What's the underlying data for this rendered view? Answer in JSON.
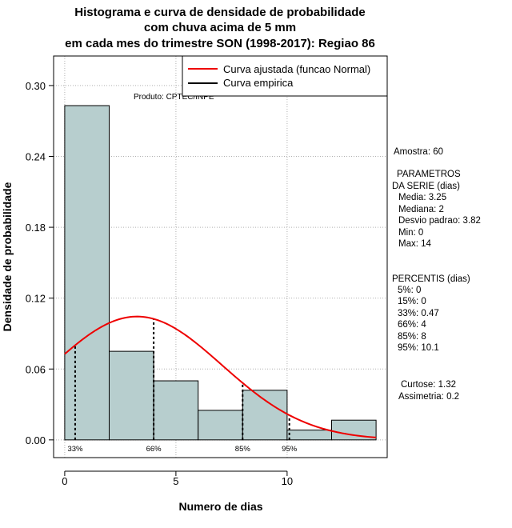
{
  "chart_data": {
    "type": "bar",
    "title_lines": [
      "Histograma e curva de densidade de probabilidade",
      "com chuva acima de 5 mm",
      "em cada mes do trimestre SON (1998-2017): Regiao 86"
    ],
    "xlabel": "Numero de dias",
    "ylabel": "Densidade de probabilidade",
    "xlim": [
      -0.5,
      14.5
    ],
    "ylim": [
      -0.015,
      0.325
    ],
    "xticks": [
      0,
      5,
      10
    ],
    "xtick_labels": [
      "0",
      "5",
      "10"
    ],
    "yticks": [
      0.0,
      0.06,
      0.12,
      0.18,
      0.24,
      0.3
    ],
    "ytick_labels": [
      "0.00",
      "0.06",
      "0.12",
      "0.18",
      "0.24",
      "0.30"
    ],
    "grid": true,
    "bins": [
      {
        "from": 0,
        "to": 2,
        "density": 0.283
      },
      {
        "from": 2,
        "to": 4,
        "density": 0.075
      },
      {
        "from": 4,
        "to": 6,
        "density": 0.05
      },
      {
        "from": 6,
        "to": 8,
        "density": 0.025
      },
      {
        "from": 8,
        "to": 10,
        "density": 0.042
      },
      {
        "from": 10,
        "to": 12,
        "density": 0.0083
      },
      {
        "from": 12,
        "to": 14,
        "density": 0.0167
      }
    ],
    "bar_color": "#b7cece",
    "fitted_curve": {
      "name": "Curva ajustada (funcao Normal)",
      "mean": 3.25,
      "sd": 3.82,
      "from": 0,
      "to": 14,
      "color": "#ee0000"
    },
    "empirical_curve": {
      "name": "Curva empirica",
      "color": "#000000"
    },
    "percentile_lines": [
      {
        "label": "33%",
        "x": 0.47
      },
      {
        "label": "66%",
        "x": 4
      },
      {
        "label": "85%",
        "x": 8
      },
      {
        "label": "95%",
        "x": 10.1
      }
    ],
    "legend_position": "top-right",
    "legend": [
      "Curva ajustada (funcao Normal)",
      "Curva empirica"
    ],
    "annotation": "Produto: CPTEC/INPE"
  },
  "side_panel": {
    "amostra": "Amostra: 60",
    "param_title_1": "PARAMETROS",
    "param_title_2": "DA SERIE (dias)",
    "params": [
      "Media: 3.25",
      "Mediana: 2",
      "Desvio padrao: 3.82",
      "Min: 0",
      "Max: 14"
    ],
    "perc_title": "PERCENTIS (dias)",
    "percentis": [
      "5%: 0",
      "15%: 0",
      "33%: 0.47",
      "66%: 4",
      "85%: 8",
      "95%: 10.1"
    ],
    "curtose": "Curtose: 1.32",
    "assimetria": "Assimetria: 0.2"
  }
}
